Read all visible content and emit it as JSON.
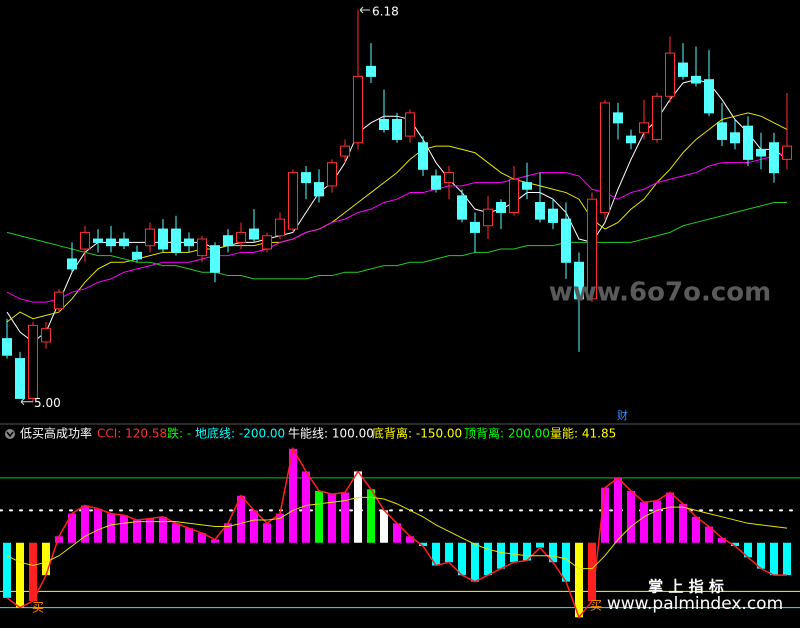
{
  "chart_data": [
    {
      "type": "candlestick",
      "up_color": "#ff3030",
      "down_color": "#54ffff",
      "open": [
        5.19,
        5.13,
        5.01,
        5.18,
        5.28,
        5.43,
        5.46,
        5.49,
        5.49,
        5.49,
        5.45,
        5.47,
        5.52,
        5.52,
        5.49,
        5.44,
        5.47,
        5.5,
        5.48,
        5.52,
        5.46,
        5.5,
        5.52,
        5.69,
        5.66,
        5.65,
        5.74,
        5.78,
        6.01,
        5.85,
        5.85,
        5.8,
        5.78,
        5.68,
        5.66,
        5.62,
        5.54,
        5.53,
        5.6,
        5.57,
        5.66,
        5.6,
        5.58,
        5.55,
        5.42,
        5.31,
        5.57,
        5.87,
        5.8,
        5.81,
        5.79,
        5.92,
        6.02,
        5.98,
        5.97,
        5.84,
        5.81,
        5.83,
        5.76,
        5.78,
        5.73
      ],
      "high": [
        5.25,
        5.15,
        5.24,
        5.24,
        5.34,
        5.48,
        5.53,
        5.52,
        5.53,
        5.51,
        5.47,
        5.54,
        5.55,
        5.56,
        5.51,
        5.5,
        5.48,
        5.52,
        5.54,
        5.58,
        5.51,
        5.57,
        5.7,
        5.71,
        5.7,
        5.73,
        5.79,
        6.18,
        6.08,
        5.94,
        5.87,
        5.88,
        5.8,
        5.7,
        5.71,
        5.64,
        5.57,
        5.62,
        5.61,
        5.71,
        5.72,
        5.69,
        5.61,
        5.6,
        5.45,
        5.63,
        5.91,
        5.9,
        5.82,
        5.91,
        5.93,
        6.1,
        6.08,
        6.07,
        6.06,
        5.9,
        5.85,
        5.86,
        5.81,
        5.81,
        5.93
      ],
      "low": [
        5.13,
        5.01,
        5.0,
        5.16,
        5.27,
        5.39,
        5.42,
        5.45,
        5.45,
        5.46,
        5.42,
        5.45,
        5.45,
        5.44,
        5.45,
        5.42,
        5.36,
        5.45,
        5.46,
        5.48,
        5.45,
        5.49,
        5.51,
        5.61,
        5.6,
        5.63,
        5.72,
        5.76,
        5.96,
        5.81,
        5.78,
        5.78,
        5.68,
        5.63,
        5.61,
        5.54,
        5.45,
        5.49,
        5.52,
        5.56,
        5.61,
        5.54,
        5.52,
        5.37,
        5.15,
        5.3,
        5.55,
        5.79,
        5.76,
        5.79,
        5.78,
        5.9,
        5.97,
        5.95,
        5.86,
        5.77,
        5.76,
        5.71,
        5.7,
        5.66,
        5.7
      ],
      "close": [
        5.14,
        5.01,
        5.23,
        5.22,
        5.33,
        5.4,
        5.51,
        5.48,
        5.47,
        5.47,
        5.43,
        5.52,
        5.46,
        5.45,
        5.47,
        5.49,
        5.39,
        5.47,
        5.51,
        5.49,
        5.5,
        5.55,
        5.69,
        5.66,
        5.62,
        5.72,
        5.77,
        5.98,
        5.98,
        5.82,
        5.79,
        5.87,
        5.7,
        5.64,
        5.69,
        5.55,
        5.51,
        5.58,
        5.57,
        5.67,
        5.64,
        5.55,
        5.54,
        5.42,
        5.31,
        5.61,
        5.9,
        5.84,
        5.78,
        5.84,
        5.92,
        6.05,
        5.98,
        5.96,
        5.87,
        5.79,
        5.78,
        5.73,
        5.74,
        5.69,
        5.77
      ],
      "series": [
        {
          "color": "#ffffff",
          "values": [
            5.27,
            5.21,
            5.18,
            5.21,
            5.3,
            5.39,
            5.45,
            5.48,
            5.48,
            5.48,
            5.48,
            5.48,
            5.48,
            5.48,
            5.48,
            5.48,
            5.46,
            5.47,
            5.48,
            5.48,
            5.49,
            5.5,
            5.51,
            5.57,
            5.63,
            5.66,
            5.72,
            5.81,
            5.84,
            5.86,
            5.86,
            5.85,
            5.79,
            5.72,
            5.67,
            5.63,
            5.58,
            5.57,
            5.58,
            5.6,
            5.63,
            5.63,
            5.61,
            5.57,
            5.49,
            5.48,
            5.54,
            5.64,
            5.73,
            5.81,
            5.85,
            5.91,
            5.96,
            5.97,
            5.96,
            5.91,
            5.85,
            5.81,
            5.76,
            5.76,
            5.73
          ]
        },
        {
          "color": "#e6e600",
          "values": [
            5.24,
            5.27,
            5.25,
            5.26,
            5.27,
            5.31,
            5.36,
            5.4,
            5.42,
            5.42,
            5.43,
            5.44,
            5.45,
            5.45,
            5.45,
            5.46,
            5.46,
            5.47,
            5.47,
            5.47,
            5.48,
            5.48,
            5.49,
            5.51,
            5.52,
            5.54,
            5.57,
            5.6,
            5.63,
            5.66,
            5.69,
            5.73,
            5.76,
            5.77,
            5.77,
            5.76,
            5.75,
            5.72,
            5.69,
            5.67,
            5.66,
            5.65,
            5.64,
            5.63,
            5.61,
            5.55,
            5.52,
            5.54,
            5.58,
            5.61,
            5.66,
            5.7,
            5.75,
            5.79,
            5.82,
            5.85,
            5.86,
            5.87,
            5.86,
            5.84,
            5.82
          ]
        },
        {
          "color": "#ff00ff",
          "values": [
            5.33,
            5.31,
            5.3,
            5.3,
            5.31,
            5.33,
            5.34,
            5.36,
            5.37,
            5.39,
            5.4,
            5.41,
            5.42,
            5.42,
            5.42,
            5.43,
            5.44,
            5.44,
            5.45,
            5.45,
            5.46,
            5.48,
            5.49,
            5.51,
            5.52,
            5.54,
            5.55,
            5.57,
            5.58,
            5.6,
            5.61,
            5.63,
            5.63,
            5.64,
            5.65,
            5.65,
            5.66,
            5.66,
            5.66,
            5.67,
            5.68,
            5.69,
            5.69,
            5.69,
            5.68,
            5.64,
            5.63,
            5.61,
            5.63,
            5.64,
            5.66,
            5.67,
            5.68,
            5.69,
            5.71,
            5.72,
            5.72,
            5.72,
            5.73,
            5.74,
            5.75
          ]
        },
        {
          "color": "#22cc22",
          "values": [
            5.51,
            5.5,
            5.49,
            5.48,
            5.47,
            5.46,
            5.45,
            5.44,
            5.44,
            5.43,
            5.42,
            5.42,
            5.41,
            5.41,
            5.4,
            5.39,
            5.39,
            5.38,
            5.38,
            5.37,
            5.37,
            5.37,
            5.37,
            5.37,
            5.38,
            5.38,
            5.39,
            5.39,
            5.4,
            5.41,
            5.41,
            5.42,
            5.42,
            5.43,
            5.44,
            5.44,
            5.45,
            5.45,
            5.46,
            5.46,
            5.47,
            5.47,
            5.47,
            5.48,
            5.48,
            5.48,
            5.48,
            5.48,
            5.48,
            5.49,
            5.5,
            5.51,
            5.53,
            5.54,
            5.55,
            5.56,
            5.57,
            5.58,
            5.59,
            5.6,
            5.6
          ]
        }
      ],
      "ylim": [
        4.96,
        6.21
      ],
      "max_label": "6.18",
      "min_label": "5.00"
    },
    {
      "type": "bar",
      "title": "低买高成功率",
      "legend": [
        {
          "text": "CCI: 120.58",
          "color": "#ff3030"
        },
        {
          "text": "跌: -",
          "color": "#00ff00"
        },
        {
          "text": "地底线: -200.00",
          "color": "#00ffff"
        },
        {
          "text": "牛能线: 100.00",
          "color": "#ffffff"
        },
        {
          "text": "底背离: -150.00",
          "color": "#ffff00"
        },
        {
          "text": "顶背离: 200.00",
          "color": "#00ff00"
        },
        {
          "text": "量能: 41.85",
          "color": "#ffff00"
        }
      ],
      "values": [
        -170,
        -200,
        -180,
        -100,
        20,
        90,
        115,
        105,
        90,
        85,
        70,
        75,
        80,
        60,
        45,
        30,
        10,
        60,
        145,
        100,
        60,
        90,
        290,
        220,
        160,
        150,
        155,
        220,
        165,
        100,
        60,
        20,
        -10,
        -70,
        -60,
        -100,
        -120,
        -100,
        -80,
        -60,
        -55,
        -15,
        -60,
        -120,
        -230,
        -180,
        170,
        200,
        160,
        125,
        130,
        155,
        120,
        80,
        50,
        15,
        -10,
        -45,
        -80,
        -100,
        -100
      ],
      "colors": [
        "#00ffff",
        "#ffff00",
        "#ff2020",
        "#ffff00",
        "#ff00ff",
        "#ff00ff",
        "#ff00ff",
        "#ff00ff",
        "#ff00ff",
        "#ff00ff",
        "#ff00ff",
        "#ff00ff",
        "#ff00ff",
        "#ff00ff",
        "#ff00ff",
        "#ff00ff",
        "#ff00ff",
        "#ff00ff",
        "#ff00ff",
        "#ff00ff",
        "#ff00ff",
        "#ff00ff",
        "#ff00ff",
        "#ff00ff",
        "#00ff00",
        "#ff00ff",
        "#ff00ff",
        "#ffffff",
        "#00ff00",
        "#ffffff",
        "#ff00ff",
        "#ff00ff",
        "#00ffff",
        "#00ffff",
        "#00ffff",
        "#00ffff",
        "#00ffff",
        "#00ffff",
        "#00ffff",
        "#00ffff",
        "#00ffff",
        "#00ffff",
        "#00ffff",
        "#00ffff",
        "#ffff00",
        "#ff2020",
        "#ff00ff",
        "#ff00ff",
        "#ff00ff",
        "#ff00ff",
        "#ff00ff",
        "#ff00ff",
        "#ff00ff",
        "#ff00ff",
        "#ff00ff",
        "#ff00ff",
        "#00ffff",
        "#00ffff",
        "#00ffff",
        "#00ffff",
        "#00ffff"
      ],
      "line_color": "#ff2020",
      "signal": {
        "color": "#e6e600",
        "values": [
          -40,
          -60,
          -70,
          -60,
          -40,
          -10,
          20,
          40,
          55,
          60,
          65,
          65,
          65,
          65,
          60,
          55,
          50,
          50,
          60,
          70,
          70,
          75,
          100,
          115,
          120,
          125,
          130,
          140,
          140,
          135,
          120,
          100,
          80,
          55,
          35,
          15,
          -5,
          -20,
          -30,
          -35,
          -40,
          -40,
          -40,
          -50,
          -80,
          -80,
          -40,
          10,
          50,
          80,
          100,
          110,
          110,
          100,
          90,
          80,
          70,
          60,
          55,
          50,
          45
        ]
      },
      "reference_lines": [
        {
          "value": 200,
          "color": "#00cc00",
          "style": "solid"
        },
        {
          "value": 100,
          "color": "#ffffff",
          "style": "dotted"
        },
        {
          "value": -150,
          "color": "#ffff00",
          "style": "solid"
        },
        {
          "value": -200,
          "color": "#00ffff",
          "style": "solid"
        }
      ],
      "ylim": [
        -263,
        317
      ]
    }
  ],
  "watermark": {
    "site": "www.6o7o.com",
    "brand": "掌 上 指 标",
    "url": "www.palmindex.com"
  },
  "markers": {
    "cai": "财",
    "buy": [
      "买",
      "买"
    ]
  }
}
